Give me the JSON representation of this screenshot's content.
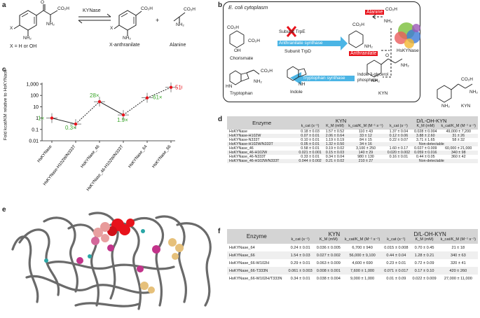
{
  "panels": {
    "a": "a",
    "b": "b",
    "c": "c",
    "d": "d",
    "e": "e",
    "f": "f"
  },
  "panel_a": {
    "enzyme": "KYNase",
    "substituent": "X = H or OH",
    "product1": "X-anthranilate",
    "plus": "+",
    "product2": "Alanine",
    "atoms": {
      "x": "X",
      "co2h": "CO₂H",
      "nh2": "NH₂",
      "o": "O"
    }
  },
  "panel_b": {
    "title": "E. coli cytoplasm",
    "alanine": "Alanine",
    "subunit_trpe": "Subunit TrpE",
    "synthase": "Anthranilate synthase",
    "subunit_trpd": "Subunit TrpD",
    "anthranilate": "Anthranilate",
    "hskynase": "HsKYNase",
    "chorismate": "Chorismate",
    "trp_synthase": "Tryptophan synthase",
    "indole_gp": "Indole 3-glycerol phosphate",
    "tryptophan": "Tryptophan",
    "indole": "Indole",
    "kyn": "KYN",
    "kyn_outside": "KYN",
    "atoms": {
      "co2h": "CO₂H",
      "nh2": "NH₂",
      "o": "O",
      "oh": "OH",
      "hn": "HN",
      "nh": "NH"
    }
  },
  "panel_e": {
    "description": ""
  },
  "chart_data": {
    "type": "line",
    "ylabel": "Fold kcat/KM relative to HsKYNase",
    "yscale": "log",
    "ylim": [
      0.01,
      1000
    ],
    "yticks": [
      "1,000",
      "100",
      "10",
      "1",
      "0.1",
      "0.01"
    ],
    "categories": [
      "HsKYNase",
      "HsKYNase-H102W/N333T",
      "HsKYNase_46",
      "HsKYNase_46-H102W/N333T",
      "HsKYNase_64",
      "HsKYNase_66"
    ],
    "series": [
      {
        "values": [
          1,
          0.3,
          28,
          1.9,
          61,
          510
        ]
      }
    ],
    "annotations": [
      "1×",
      "0.3×",
      "28×",
      "1.9×",
      "61×",
      "510×"
    ],
    "colors": {
      "point": "#e8121b",
      "annotation": "#3aa62a",
      "annotation_high": "#e8121b",
      "line": "#222222"
    }
  },
  "table_d": {
    "col_enzyme": "Enzyme",
    "group_kyn": "KYN",
    "group_ohkyn": "D/L-OH-KYN",
    "subheaders": [
      "k_cat (s⁻¹)",
      "K_M (mM)",
      "k_cat/K_M (M⁻¹ s⁻¹)",
      "k_cat (s⁻¹)",
      "K_M (mM)",
      "k_cat/K_M (M⁻¹ s⁻¹)"
    ],
    "rows": [
      {
        "enzyme": "HsKYNase",
        "kcat": "0.18 ± 0.03",
        "km": "1.57 ± 0.52",
        "eff": "110 ± 43",
        "ohkyn": [
          "1.37 ± 0.04",
          "0.028 ± 0.004",
          "49,000 ± 7,200"
        ]
      },
      {
        "enzyme": "HsKYNase-H102W",
        "kcat": "0.07 ± 0.01",
        "km": "2.06 ± 0.64",
        "eff": "33 ± 12",
        "ohkyn": [
          "0.12 ± 0.06",
          "3.88 ± 2.60",
          "31 ± 26"
        ]
      },
      {
        "enzyme": "HsKYNase-N333T",
        "kcat": "0.10 ± 0.01",
        "km": "1.19 ± 0.19",
        "eff": "84 ± 15",
        "ohkyn": [
          "0.22 ± 0.07",
          "3.71 ± 1.65",
          "58 ± 32"
        ]
      },
      {
        "enzyme": "HsKYNase-H102W/N333T",
        "kcat": "0.05 ± 0.01",
        "km": "1.32 ± 0.50",
        "eff": "34 ± 16",
        "ohkyn_merged": "Non-detectable"
      },
      {
        "enzyme": "HsKYNase_46",
        "kcat": "0.58 ± 0.01",
        "km": "0.19 ± 0.02",
        "eff": "3,100 ± 250",
        "ohkyn": [
          "1.60 ± 0.17",
          "0.027 ± 0.009",
          "60,000 ± 21,000"
        ]
      },
      {
        "enzyme": "HsKYNase_46-H102W",
        "kcat": "0.021 ± 0.001",
        "km": "0.15 ± 0.03",
        "eff": "140 ± 29",
        "ohkyn": [
          "0.020 ± 0.002",
          "0.059 ± 0.016",
          "340 ± 98"
        ]
      },
      {
        "enzyme": "HsKYNase_46-N333T",
        "kcat": "0.33 ± 0.01",
        "km": "0.34 ± 0.04",
        "eff": "980 ± 130",
        "ohkyn": [
          "0.16 ± 0.01",
          "0.44 ± 0.05",
          "360 ± 42"
        ]
      },
      {
        "enzyme": "HsKYNase_46-H102W/N333T",
        "kcat": "0.044 ± 0.002",
        "km": "0.21 ± 0.02",
        "eff": "210 ± 27",
        "ohkyn_merged": "Non-detectable"
      }
    ]
  },
  "table_f": {
    "col_enzyme": "Enzyme",
    "group_kyn": "KYN",
    "group_ohkyn": "D/L-OH-KYN",
    "subheaders": [
      "k_cat (s⁻¹)",
      "K_M (mM)",
      "k_cat/K_M (M⁻¹ s⁻¹)",
      "k_cat (s⁻¹)",
      "K_M (mM)",
      "k_cat/K_M (M⁻¹ s⁻¹)"
    ],
    "rows": [
      {
        "enzyme": "HsKYNase_64",
        "cells": [
          "0.24 ± 0.01",
          "0.036 ± 0.005",
          "6,700 ± 940",
          "0.015 ± 0.008",
          "0.70 ± 0.45",
          "21 ± 18"
        ]
      },
      {
        "enzyme": "HsKYNase_66",
        "cells": [
          "1.54 ± 0.03",
          "0.027 ± 0.002",
          "56,000 ± 9,100",
          "0.44 ± 0.04",
          "1.28 ± 0.21",
          "340 ± 63"
        ]
      },
      {
        "enzyme": "HsKYNase_66-W102H",
        "cells": [
          "0.29 ± 0.01",
          "0.063 ± 0.009",
          "4,600 ± 690",
          "0.23 ± 0.01",
          "0.72 ± 0.09",
          "320 ± 41"
        ]
      },
      {
        "enzyme": "HsKYNase_66-T333N",
        "cells": [
          "0.061 ± 0.003",
          "0.008 ± 0.001",
          "7,600 ± 1,000",
          "0.071 ± 0.017",
          "0.17 ± 0.10",
          "420 ± 260"
        ]
      },
      {
        "enzyme": "HsKYNase_66-W102H/T333N",
        "cells": [
          "0.34 ± 0.01",
          "0.038 ± 0.004",
          "9,000 ± 1,000",
          "0.01 ± 0.09",
          "0.022 ± 0.009",
          "27,000 ± 11,000"
        ]
      }
    ]
  },
  "colors": {
    "red": "#e8121b",
    "blue": "#2ba8e0",
    "table_header": "#d4d4d4",
    "table_row_alt": "#efefef",
    "protein": "#6a6a6a"
  }
}
